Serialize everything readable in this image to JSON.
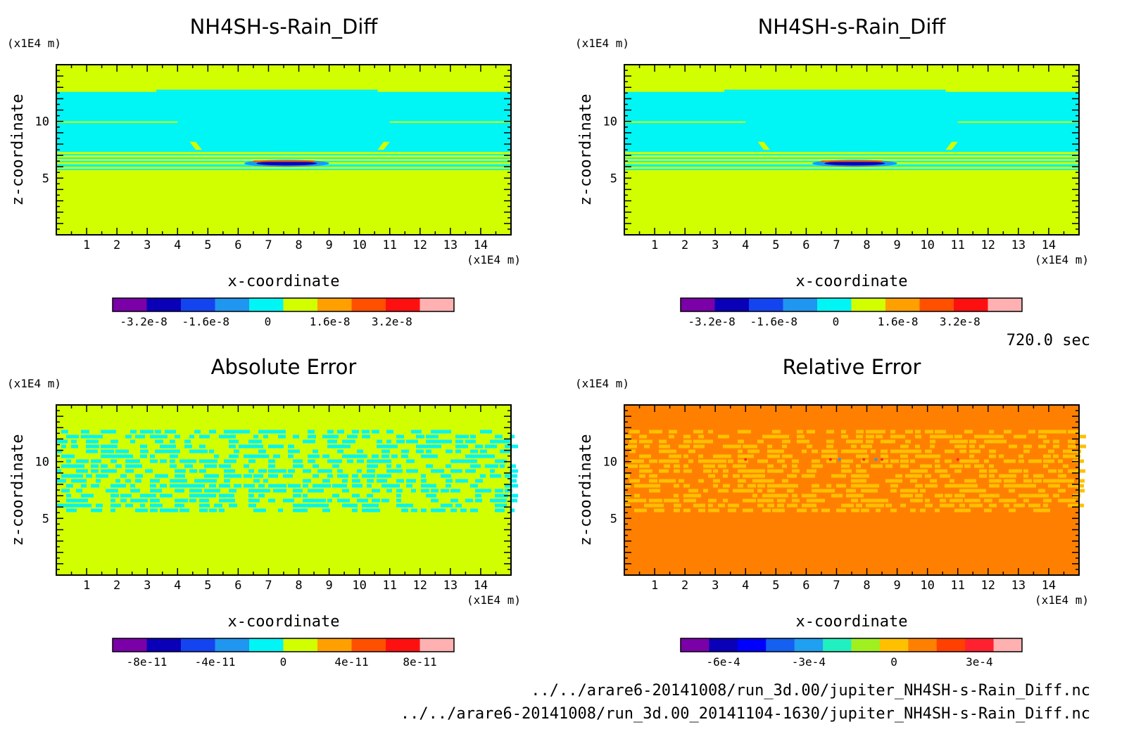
{
  "time_label": "720.0 sec",
  "footer": {
    "file1": "../../arare6-20141008/run_3d.00/jupiter_NH4SH-s-Rain_Diff.nc",
    "file2": "../../arare6-20141008/run_3d.00_20141104-1630/jupiter_NH4SH-s-Rain_Diff.nc"
  },
  "chart_data": [
    {
      "type": "heatmap",
      "title": "NH4SH-s-Rain_Diff",
      "xlabel": "x-coordinate",
      "ylabel": "z-coordinate",
      "x_unit": "(x1E4 m)",
      "y_unit": "(x1E4 m)",
      "xlim": [
        0,
        15
      ],
      "ylim": [
        0,
        15
      ],
      "xticks": [
        1,
        2,
        3,
        4,
        5,
        6,
        7,
        8,
        9,
        10,
        11,
        12,
        13,
        14
      ],
      "yticks": [
        5,
        10
      ],
      "colorbar": {
        "colors": [
          "#7a00a8",
          "#0a00b8",
          "#1444f0",
          "#1f96f0",
          "#00f5f5",
          "#d2ff00",
          "#ffa000",
          "#ff5000",
          "#ff1010",
          "#ffb0b0"
        ],
        "tick_labels": [
          "-3.2e-8",
          "-1.6e-8",
          "0",
          "1.6e-8",
          "3.2e-8"
        ],
        "tick_values": [
          -3.2e-08,
          -1.6e-08,
          0,
          1.6e-08,
          3.2e-08
        ]
      },
      "pattern": "field"
    },
    {
      "type": "heatmap",
      "title": "NH4SH-s-Rain_Diff",
      "xlabel": "x-coordinate",
      "ylabel": "z-coordinate",
      "x_unit": "(x1E4 m)",
      "y_unit": "(x1E4 m)",
      "xlim": [
        0,
        15
      ],
      "ylim": [
        0,
        15
      ],
      "xticks": [
        1,
        2,
        3,
        4,
        5,
        6,
        7,
        8,
        9,
        10,
        11,
        12,
        13,
        14
      ],
      "yticks": [
        5,
        10
      ],
      "colorbar": {
        "colors": [
          "#7a00a8",
          "#0a00b8",
          "#1444f0",
          "#1f96f0",
          "#00f5f5",
          "#d2ff00",
          "#ffa000",
          "#ff5000",
          "#ff1010",
          "#ffb0b0"
        ],
        "tick_labels": [
          "-3.2e-8",
          "-1.6e-8",
          "0",
          "1.6e-8",
          "3.2e-8"
        ],
        "tick_values": [
          -3.2e-08,
          -1.6e-08,
          0,
          1.6e-08,
          3.2e-08
        ]
      },
      "pattern": "field"
    },
    {
      "type": "heatmap",
      "title": "Absolute Error",
      "xlabel": "x-coordinate",
      "ylabel": "z-coordinate",
      "x_unit": "(x1E4 m)",
      "y_unit": "(x1E4 m)",
      "xlim": [
        0,
        15
      ],
      "ylim": [
        0,
        15
      ],
      "xticks": [
        1,
        2,
        3,
        4,
        5,
        6,
        7,
        8,
        9,
        10,
        11,
        12,
        13,
        14
      ],
      "yticks": [
        5,
        10
      ],
      "colorbar": {
        "colors": [
          "#7a00a8",
          "#0a00b8",
          "#1444f0",
          "#1f96f0",
          "#00f5f5",
          "#d2ff00",
          "#ffa000",
          "#ff5000",
          "#ff1010",
          "#ffb0b0"
        ],
        "tick_labels": [
          "-8e-11",
          "-4e-11",
          "0",
          "4e-11",
          "8e-11"
        ],
        "tick_values": [
          -8e-11,
          -4e-11,
          0,
          4e-11,
          8e-11
        ]
      },
      "pattern": "noise_cyan"
    },
    {
      "type": "heatmap",
      "title": "Relative Error",
      "xlabel": "x-coordinate",
      "ylabel": "z-coordinate",
      "x_unit": "(x1E4 m)",
      "y_unit": "(x1E4 m)",
      "xlim": [
        0,
        15
      ],
      "ylim": [
        0,
        15
      ],
      "xticks": [
        1,
        2,
        3,
        4,
        5,
        6,
        7,
        8,
        9,
        10,
        11,
        12,
        13,
        14
      ],
      "yticks": [
        5,
        10
      ],
      "colorbar": {
        "colors": [
          "#7a00a8",
          "#0a00b8",
          "#0000ff",
          "#1460f0",
          "#1fa0f0",
          "#20f0c0",
          "#a0f020",
          "#ffc000",
          "#ff8000",
          "#ff4000",
          "#ff2030",
          "#ffb0b0"
        ],
        "tick_labels": [
          "-6e-4",
          "-3e-4",
          "0",
          "3e-4"
        ],
        "tick_values": [
          -0.0006,
          -0.0003,
          0,
          0.0003
        ]
      },
      "pattern": "noise_orange"
    }
  ]
}
